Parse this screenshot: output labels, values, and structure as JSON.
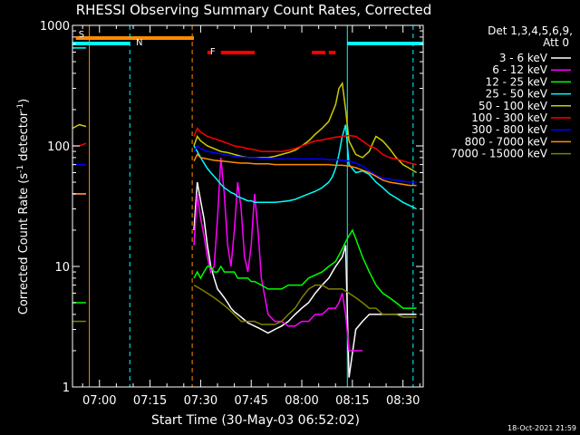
{
  "chart_data": {
    "type": "line",
    "title": "RHESSI Observing Summary Count Rates, Corrected",
    "xlabel": "Start Time (30-May-03 06:52:02)",
    "ylabel": "Corrected Count Rate (s-1 detector-1)",
    "ylabel_parts": {
      "base": "Corrected Count Rate (s",
      "exp1": "-1",
      "mid": " detector",
      "exp2": "-1",
      "end": ")"
    },
    "y_scale": "log",
    "ylim": [
      1,
      1000
    ],
    "xlim_min": [
      0,
      104
    ],
    "x_units": "minutes after 06:52:02",
    "x_ticks": [
      {
        "t": 8,
        "label": "07:00"
      },
      {
        "t": 23,
        "label": "07:15"
      },
      {
        "t": 38,
        "label": "07:30"
      },
      {
        "t": 53,
        "label": "07:45"
      },
      {
        "t": 68,
        "label": "08:00"
      },
      {
        "t": 83,
        "label": "08:15"
      },
      {
        "t": 98,
        "label": "08:30"
      }
    ],
    "y_ticks": [
      {
        "v": 1,
        "label": "1"
      },
      {
        "v": 10,
        "label": "10"
      },
      {
        "v": 100,
        "label": "100"
      },
      {
        "v": 1000,
        "label": "1000"
      }
    ],
    "legend_header": [
      "Det 1,3,4,5,6,9,",
      "Att 0"
    ],
    "legend_position": "right",
    "footer_date": "18-Oct-2021 21:59",
    "flags": [
      {
        "label": "S",
        "color": "#ff8c00",
        "segments": [
          [
            1,
            36
          ]
        ]
      },
      {
        "label": "N",
        "color": "#00ffff",
        "segments": [
          [
            0,
            17
          ],
          [
            81.5,
            104
          ]
        ]
      },
      {
        "label": "F",
        "color": "#ff0000",
        "segments": [
          [
            40,
            41
          ],
          [
            44,
            54
          ],
          [
            71,
            75
          ],
          [
            76,
            78
          ]
        ]
      }
    ],
    "vlines": [
      {
        "t": 0,
        "color": "#00ffff",
        "style": "solid"
      },
      {
        "t": 5,
        "color": "#ff8c00",
        "style": "solid"
      },
      {
        "t": 17,
        "color": "#00ffff",
        "style": "dashed"
      },
      {
        "t": 35.5,
        "color": "#ff8c00",
        "style": "dashed"
      },
      {
        "t": 81.5,
        "color": "#00ffff",
        "style": "solid"
      },
      {
        "t": 101,
        "color": "#00ffff",
        "style": "dashed"
      }
    ],
    "series": [
      {
        "name": "3 - 6 keV",
        "color": "#ffffff",
        "x": [
          0,
          2,
          4,
          36,
          37,
          38,
          39,
          40,
          41,
          42,
          43,
          44,
          45,
          46,
          47,
          48,
          49,
          50,
          51,
          52,
          53,
          54,
          55,
          56,
          58,
          60,
          62,
          64,
          66,
          68,
          70,
          72,
          74,
          76,
          78,
          80,
          81,
          82,
          84,
          86,
          88,
          90,
          92,
          94,
          96,
          98,
          100,
          102
        ],
        "y": [
          40,
          40,
          40,
          20,
          50,
          35,
          25,
          15,
          10,
          8,
          6.5,
          6,
          5.5,
          5,
          4.5,
          4.2,
          4,
          3.8,
          3.6,
          3.4,
          3.3,
          3.2,
          3.1,
          3,
          2.8,
          3,
          3.2,
          3.5,
          4,
          4.5,
          5,
          6,
          7,
          8,
          10,
          12,
          15,
          1.2,
          3,
          3.5,
          4,
          4,
          4,
          4,
          4,
          4,
          4,
          4
        ]
      },
      {
        "name": "6 - 12 keV",
        "color": "#ff00ff",
        "x": [
          0,
          2,
          4,
          36,
          37,
          38,
          39,
          40,
          41,
          42,
          43,
          44,
          45,
          46,
          47,
          48,
          49,
          50,
          51,
          52,
          53,
          54,
          55,
          56,
          58,
          60,
          62,
          64,
          66,
          68,
          70,
          72,
          74,
          76,
          78,
          79,
          80,
          81,
          82,
          84,
          86
        ],
        "y": [
          40,
          40,
          40,
          15,
          40,
          25,
          18,
          12,
          9,
          10,
          25,
          80,
          40,
          15,
          10,
          20,
          50,
          30,
          12,
          9,
          15,
          40,
          20,
          8,
          4,
          3.5,
          3.5,
          3.2,
          3.2,
          3.5,
          3.5,
          4,
          4,
          4.5,
          4.5,
          5,
          6,
          4,
          2,
          2,
          2
        ]
      },
      {
        "name": "12 - 25 keV",
        "color": "#00ff00",
        "x": [
          0,
          2,
          4,
          36,
          37,
          38,
          39,
          40,
          41,
          42,
          43,
          44,
          45,
          46,
          47,
          48,
          49,
          50,
          51,
          52,
          53,
          54,
          56,
          58,
          60,
          62,
          64,
          66,
          68,
          70,
          72,
          74,
          76,
          78,
          80,
          81,
          82,
          83,
          84,
          86,
          88,
          90,
          92,
          94,
          96,
          98,
          100,
          102
        ],
        "y": [
          5,
          5,
          5,
          8,
          9,
          8,
          9,
          10,
          10,
          9,
          9,
          10,
          9,
          9,
          9,
          9,
          8,
          8,
          8,
          8,
          7.5,
          7.5,
          7,
          6.5,
          6.5,
          6.5,
          7,
          7,
          7,
          8,
          8.5,
          9,
          10,
          11,
          14,
          16,
          18,
          20,
          17,
          12,
          9,
          7,
          6,
          5.5,
          5,
          4.5,
          4.5,
          4.5
        ]
      },
      {
        "name": "25 - 50 keV",
        "color": "#00ffff",
        "x": [
          0,
          2,
          4,
          36,
          37,
          38,
          39,
          40,
          41,
          42,
          43,
          44,
          45,
          46,
          47,
          48,
          49,
          50,
          51,
          52,
          53,
          54,
          56,
          58,
          60,
          62,
          64,
          66,
          68,
          70,
          72,
          74,
          76,
          77,
          78,
          79,
          80,
          81,
          82,
          84,
          86,
          88,
          90,
          92,
          94,
          96,
          98,
          100,
          102
        ],
        "y": [
          650,
          650,
          650,
          100,
          90,
          80,
          72,
          65,
          60,
          56,
          52,
          48,
          45,
          43,
          41,
          40,
          38,
          37,
          36,
          35,
          35,
          34,
          34,
          34,
          34,
          34.5,
          35,
          36,
          38,
          40,
          42,
          45,
          50,
          55,
          65,
          85,
          120,
          150,
          70,
          60,
          62,
          58,
          50,
          45,
          40,
          37,
          34,
          32,
          30
        ]
      },
      {
        "name": "50 - 100 keV",
        "color": "#cccc00",
        "x": [
          0,
          2,
          4,
          36,
          37,
          38,
          40,
          42,
          44,
          46,
          48,
          50,
          52,
          54,
          56,
          58,
          60,
          62,
          64,
          66,
          68,
          70,
          72,
          74,
          76,
          78,
          79,
          80,
          81,
          82,
          84,
          86,
          88,
          89,
          90,
          92,
          94,
          96,
          98,
          100,
          102
        ],
        "y": [
          140,
          150,
          145,
          100,
          120,
          110,
          100,
          95,
          90,
          88,
          85,
          82,
          80,
          80,
          80,
          80,
          82,
          85,
          88,
          92,
          100,
          110,
          125,
          140,
          160,
          220,
          300,
          330,
          200,
          110,
          85,
          80,
          90,
          105,
          120,
          110,
          95,
          80,
          70,
          65,
          60
        ]
      },
      {
        "name": "100 - 300 keV",
        "color": "#ff0000",
        "x": [
          0,
          2,
          4,
          36,
          37,
          38,
          40,
          42,
          44,
          46,
          48,
          50,
          52,
          54,
          56,
          58,
          60,
          62,
          64,
          66,
          68,
          70,
          72,
          74,
          76,
          78,
          80,
          82,
          84,
          86,
          88,
          90,
          92,
          94,
          96,
          98,
          100,
          102
        ],
        "y": [
          100,
          100,
          105,
          120,
          140,
          130,
          120,
          115,
          110,
          105,
          100,
          98,
          95,
          93,
          90,
          90,
          90,
          90,
          92,
          95,
          100,
          105,
          110,
          112,
          115,
          118,
          120,
          122,
          120,
          110,
          100,
          95,
          85,
          80,
          78,
          75,
          72,
          70
        ]
      },
      {
        "name": "300 - 800 keV",
        "color": "#0000ff",
        "x": [
          0,
          2,
          4,
          36,
          37,
          38,
          40,
          42,
          44,
          46,
          48,
          50,
          52,
          54,
          56,
          58,
          60,
          62,
          64,
          66,
          68,
          70,
          72,
          74,
          76,
          78,
          80,
          82,
          84,
          86,
          88,
          90,
          92,
          94,
          96,
          98,
          100,
          102
        ],
        "y": [
          70,
          70,
          70,
          90,
          100,
          95,
          90,
          88,
          86,
          84,
          82,
          81,
          80,
          80,
          79,
          79,
          78,
          78,
          78,
          78,
          78,
          78,
          78,
          78,
          77,
          77,
          76,
          75,
          72,
          68,
          62,
          57,
          54,
          53,
          52,
          51,
          50,
          50
        ]
      },
      {
        "name": "800 - 7000 keV",
        "color": "#ff8c00",
        "x": [
          0,
          2,
          4,
          36,
          37,
          38,
          40,
          42,
          44,
          46,
          48,
          50,
          52,
          54,
          56,
          58,
          60,
          62,
          64,
          66,
          68,
          70,
          72,
          74,
          76,
          78,
          80,
          82,
          84,
          86,
          88,
          90,
          92,
          94,
          96,
          98,
          100,
          102
        ],
        "y": [
          40,
          40,
          40,
          75,
          85,
          80,
          78,
          76,
          75,
          74,
          73,
          72,
          72,
          71,
          71,
          71,
          70,
          70,
          70,
          70,
          70,
          70,
          70,
          70,
          70,
          69,
          69,
          68,
          66,
          63,
          60,
          56,
          52,
          50,
          49,
          48,
          47,
          47
        ]
      },
      {
        "name": "7000 - 15000 keV",
        "color": "#808000",
        "x": [
          0,
          2,
          4,
          36,
          38,
          40,
          42,
          44,
          46,
          48,
          50,
          52,
          54,
          56,
          58,
          60,
          62,
          64,
          66,
          68,
          70,
          72,
          74,
          76,
          78,
          80,
          82,
          84,
          86,
          88,
          90,
          92,
          94,
          96,
          98,
          100,
          102
        ],
        "y": [
          3.5,
          3.5,
          3.5,
          7,
          6.5,
          6,
          5.5,
          5,
          4.5,
          4,
          3.5,
          3.5,
          3.5,
          3.3,
          3.3,
          3.3,
          3.5,
          4,
          4.5,
          5.5,
          6.5,
          7,
          7,
          6.5,
          6.5,
          6.5,
          6,
          5.5,
          5,
          4.5,
          4.5,
          4,
          4,
          4,
          3.8,
          3.8,
          3.8
        ]
      }
    ]
  }
}
